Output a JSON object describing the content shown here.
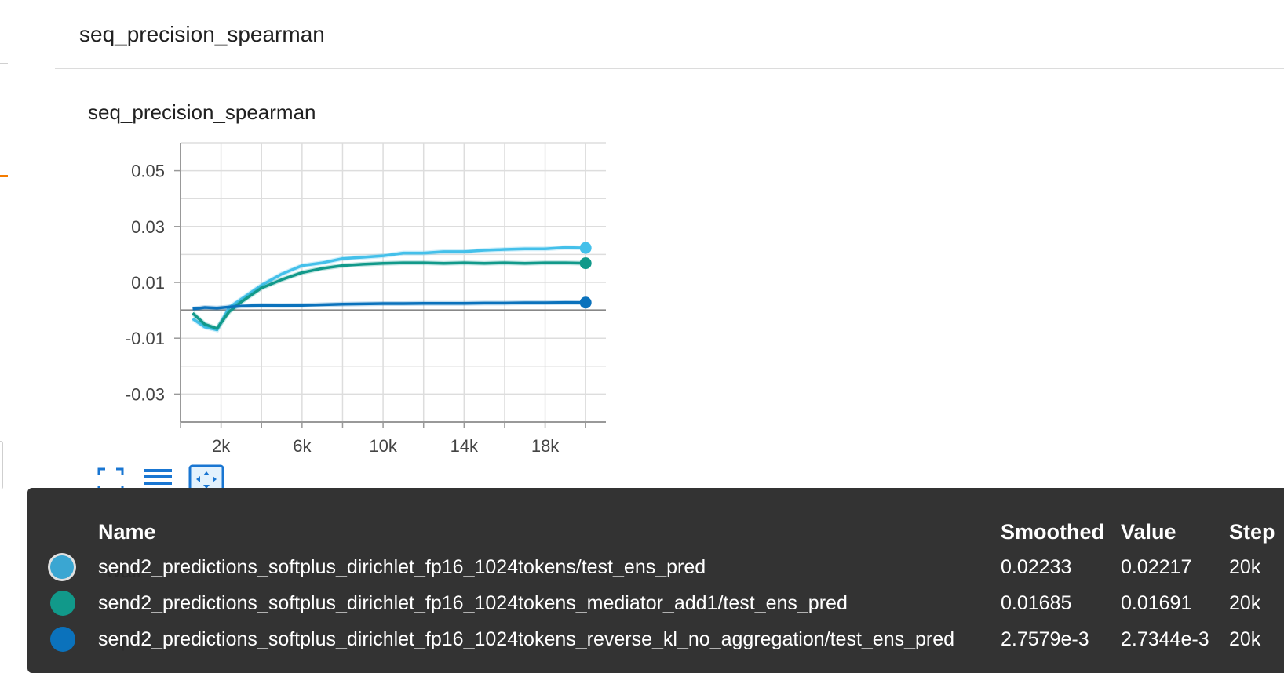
{
  "card": {
    "title": "seq_precision_spearman"
  },
  "chart_data": {
    "type": "line",
    "title": "seq_precision_spearman",
    "xlabel": "",
    "ylabel": "",
    "xlim": [
      0,
      21000
    ],
    "ylim": [
      -0.04,
      0.06
    ],
    "x_ticks": [
      2000,
      6000,
      10000,
      14000,
      18000
    ],
    "x_tick_labels": [
      "2k",
      "6k",
      "10k",
      "14k",
      "18k"
    ],
    "y_ticks": [
      0.05,
      0.03,
      0.01,
      -0.01,
      -0.03
    ],
    "y_tick_labels": [
      "0.05",
      "0.03",
      "0.01",
      "-0.01",
      "-0.03"
    ],
    "grid": true,
    "x": [
      600,
      1200,
      1800,
      2400,
      3000,
      4000,
      5000,
      6000,
      7000,
      8000,
      9000,
      10000,
      11000,
      12000,
      13000,
      14000,
      15000,
      16000,
      17000,
      18000,
      19000,
      20000
    ],
    "series": [
      {
        "name": "send2_predictions_softplus_dirichlet_fp16_1024tokens/test_ens_pred",
        "color": "#44c0ea",
        "values": [
          -0.003,
          -0.006,
          -0.007,
          0.001,
          0.004,
          0.009,
          0.013,
          0.016,
          0.017,
          0.0185,
          0.019,
          0.0195,
          0.0205,
          0.0205,
          0.021,
          0.021,
          0.0215,
          0.0218,
          0.022,
          0.022,
          0.0225,
          0.02233
        ]
      },
      {
        "name": "send2_predictions_softplus_dirichlet_fp16_1024tokens_mediator_add1/test_ens_pred",
        "color": "#11998a",
        "values": [
          -0.001,
          -0.005,
          -0.0065,
          -0.0005,
          0.003,
          0.008,
          0.011,
          0.0135,
          0.015,
          0.016,
          0.0165,
          0.0168,
          0.017,
          0.017,
          0.0168,
          0.017,
          0.0168,
          0.017,
          0.0168,
          0.017,
          0.017,
          0.01685
        ]
      },
      {
        "name": "send2_predictions_softplus_dirichlet_fp16_1024tokens_reverse_kl_no_aggregation/test_ens_pred",
        "color": "#0b72bc",
        "values": [
          0.0005,
          0.001,
          0.0008,
          0.0012,
          0.0015,
          0.0018,
          0.0017,
          0.0018,
          0.002,
          0.0022,
          0.0023,
          0.0024,
          0.0024,
          0.0025,
          0.0025,
          0.0025,
          0.0026,
          0.0026,
          0.0027,
          0.0027,
          0.0028,
          0.0027579
        ]
      }
    ]
  },
  "tooltip": {
    "headers": {
      "name": "Name",
      "smoothed": "Smoothed",
      "value": "Value",
      "step": "Step"
    },
    "rows": [
      {
        "color": "#3aa6d2",
        "name": "send2_predictions_softplus_dirichlet_fp16_1024tokens/test_ens_pred",
        "smoothed": "0.02233",
        "value": "0.02217",
        "step": "20k"
      },
      {
        "color": "#11998a",
        "name": "send2_predictions_softplus_dirichlet_fp16_1024tokens_mediator_add1/test_ens_pred",
        "smoothed": "0.01685",
        "value": "0.01691",
        "step": "20k"
      },
      {
        "color": "#0b72bc",
        "name": "send2_predictions_softplus_dirichlet_fp16_1024tokens_reverse_kl_no_aggregation/test_ens_pred",
        "smoothed": "2.7579e-3",
        "value": "2.7344e-3",
        "step": "20k"
      }
    ]
  },
  "underlying_labels": [
    "wall",
    "wpb"
  ],
  "icons": [
    "expand-icon",
    "list-icon",
    "fit-domain-icon"
  ]
}
